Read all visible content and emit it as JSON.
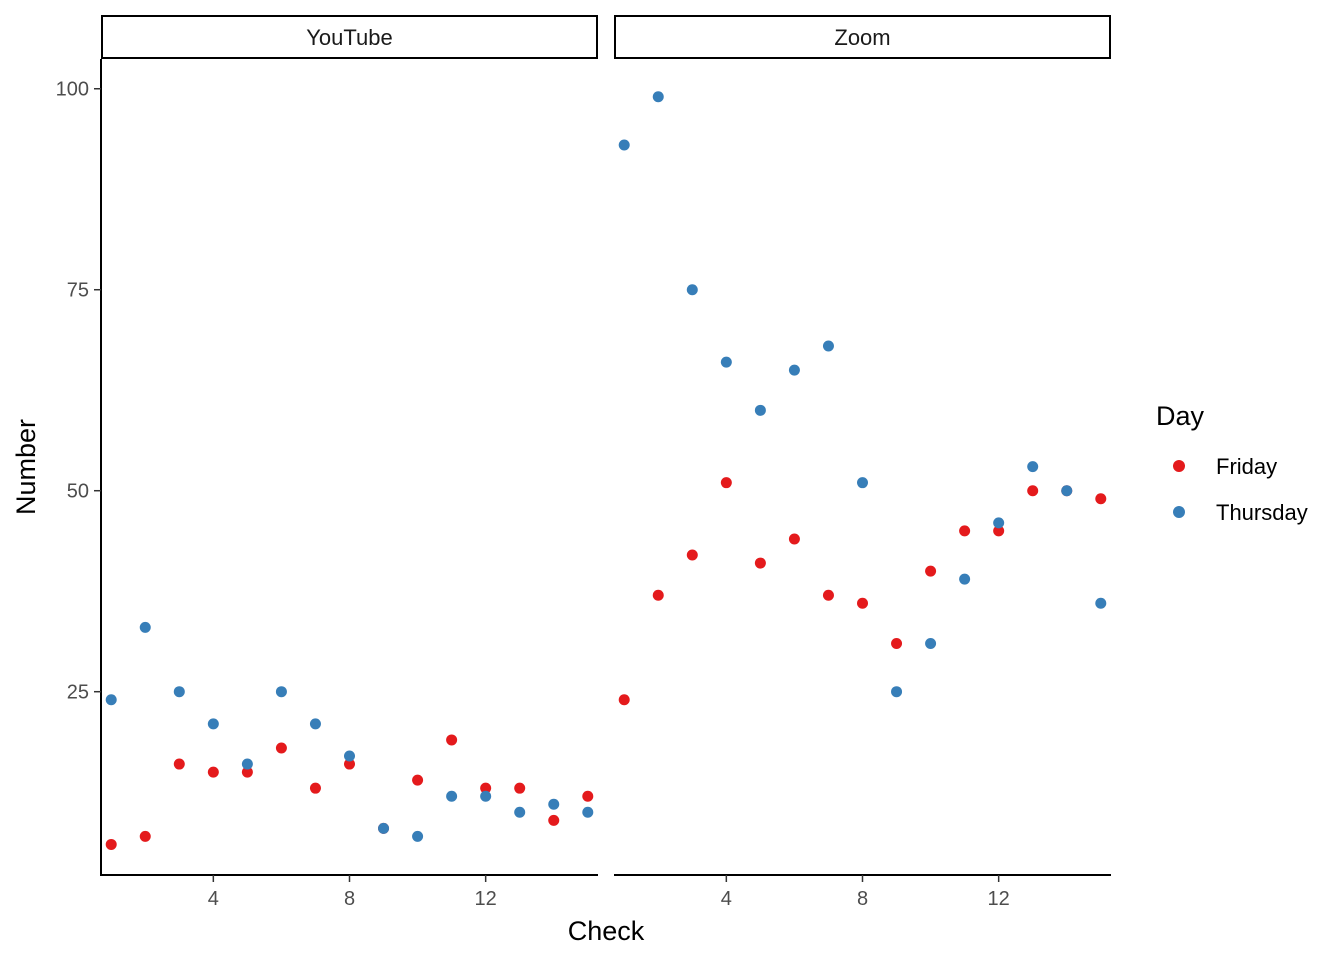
{
  "chart_data": {
    "type": "scatter",
    "xlabel": "Check",
    "ylabel": "Number",
    "xlim": [
      0.7,
      15.3
    ],
    "ylim": [
      2.2,
      103.7
    ],
    "xticks": [
      4,
      8,
      12
    ],
    "yticks": [
      25,
      50,
      75,
      100
    ],
    "grid": false,
    "legend": {
      "title": "Day",
      "position": "right",
      "entries": [
        {
          "name": "Friday",
          "color": "#E41A1C"
        },
        {
          "name": "Thursday",
          "color": "#377EB8"
        }
      ]
    },
    "facets": [
      {
        "label": "YouTube",
        "series": [
          {
            "name": "Friday",
            "color": "#E41A1C",
            "x": [
              1,
              2,
              3,
              4,
              5,
              6,
              7,
              8,
              9,
              10,
              11,
              12,
              13,
              14,
              15
            ],
            "y": [
              6,
              7,
              16,
              15,
              15,
              18,
              13,
              16,
              8,
              14,
              19,
              13,
              13,
              9,
              12
            ]
          },
          {
            "name": "Thursday",
            "color": "#377EB8",
            "x": [
              1,
              2,
              3,
              4,
              5,
              6,
              7,
              8,
              9,
              10,
              11,
              12,
              13,
              14,
              15
            ],
            "y": [
              24,
              33,
              25,
              21,
              16,
              25,
              21,
              17,
              8,
              7,
              12,
              12,
              10,
              11,
              10
            ]
          }
        ]
      },
      {
        "label": "Zoom",
        "series": [
          {
            "name": "Friday",
            "color": "#E41A1C",
            "x": [
              1,
              2,
              3,
              4,
              5,
              6,
              7,
              8,
              9,
              10,
              11,
              12,
              13,
              14,
              15
            ],
            "y": [
              24,
              37,
              42,
              51,
              41,
              44,
              37,
              36,
              31,
              40,
              45,
              45,
              50,
              50,
              49
            ]
          },
          {
            "name": "Thursday",
            "color": "#377EB8",
            "x": [
              1,
              2,
              3,
              4,
              5,
              6,
              7,
              8,
              9,
              10,
              11,
              12,
              13,
              14,
              15
            ],
            "y": [
              93,
              99,
              75,
              66,
              60,
              65,
              68,
              51,
              25,
              31,
              39,
              46,
              53,
              50,
              36
            ]
          }
        ]
      }
    ]
  }
}
